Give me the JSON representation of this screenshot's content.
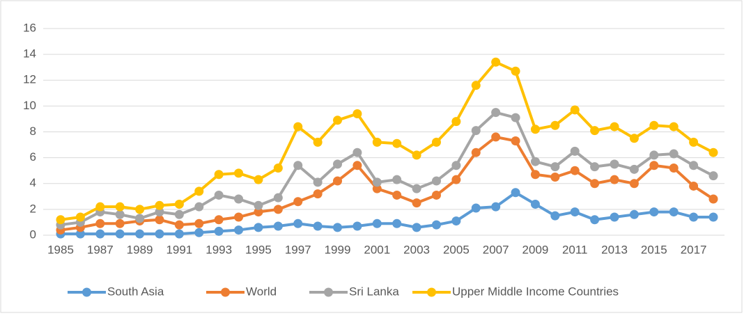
{
  "chart_data": {
    "type": "line",
    "categories": [
      "1985",
      null,
      "1987",
      null,
      "1989",
      null,
      "1991",
      null,
      "1993",
      null,
      "1995",
      null,
      "1997",
      null,
      "1999",
      null,
      "2001",
      null,
      "2003",
      null,
      "2005",
      null,
      "2007",
      null,
      "2009",
      null,
      "2011",
      null,
      "2013",
      null,
      "2015",
      null,
      "2017",
      null
    ],
    "series": [
      {
        "name": "South Asia",
        "color": "#5b9bd5",
        "values": [
          0.1,
          0.1,
          0.1,
          0.1,
          0.1,
          0.1,
          0.1,
          0.2,
          0.3,
          0.4,
          0.6,
          0.7,
          0.9,
          0.7,
          0.6,
          0.7,
          0.9,
          0.9,
          0.6,
          0.8,
          1.1,
          2.1,
          2.2,
          3.3,
          2.4,
          1.5,
          1.8,
          1.2,
          1.4,
          1.6,
          1.8,
          1.8,
          1.4,
          1.4
        ]
      },
      {
        "name": "World",
        "color": "#ed7d31",
        "values": [
          0.4,
          0.6,
          0.9,
          0.9,
          1.1,
          1.2,
          0.8,
          0.9,
          1.2,
          1.4,
          1.8,
          2.0,
          2.6,
          3.2,
          4.2,
          5.4,
          3.6,
          3.1,
          2.5,
          3.1,
          4.3,
          6.4,
          7.6,
          7.3,
          4.7,
          4.5,
          5.0,
          4.0,
          4.3,
          4.0,
          5.4,
          5.2,
          3.8,
          2.8
        ]
      },
      {
        "name": "Sri Lanka",
        "color": "#a5a5a5",
        "values": [
          0.8,
          1.0,
          1.8,
          1.6,
          1.3,
          1.8,
          1.6,
          2.2,
          3.1,
          2.8,
          2.3,
          2.9,
          5.4,
          4.1,
          5.5,
          6.4,
          4.1,
          4.3,
          3.6,
          4.2,
          5.4,
          8.1,
          9.5,
          9.1,
          5.7,
          5.3,
          6.5,
          5.3,
          5.5,
          5.1,
          6.2,
          6.3,
          5.4,
          4.6
        ]
      },
      {
        "name": "Upper Middle Income Countries",
        "color": "#ffc000",
        "values": [
          1.2,
          1.4,
          2.2,
          2.2,
          2.0,
          2.3,
          2.4,
          3.4,
          4.7,
          4.8,
          4.3,
          5.2,
          8.4,
          7.2,
          8.9,
          9.4,
          7.2,
          7.1,
          6.2,
          7.2,
          8.8,
          11.6,
          13.4,
          12.7,
          8.2,
          8.5,
          9.7,
          8.1,
          8.4,
          7.5,
          8.5,
          8.4,
          7.2,
          6.4
        ]
      }
    ],
    "ylim": [
      0,
      16
    ],
    "yticks": [
      0,
      2,
      4,
      6,
      8,
      10,
      12,
      14,
      16
    ],
    "grid": true,
    "legend": "bottom"
  }
}
